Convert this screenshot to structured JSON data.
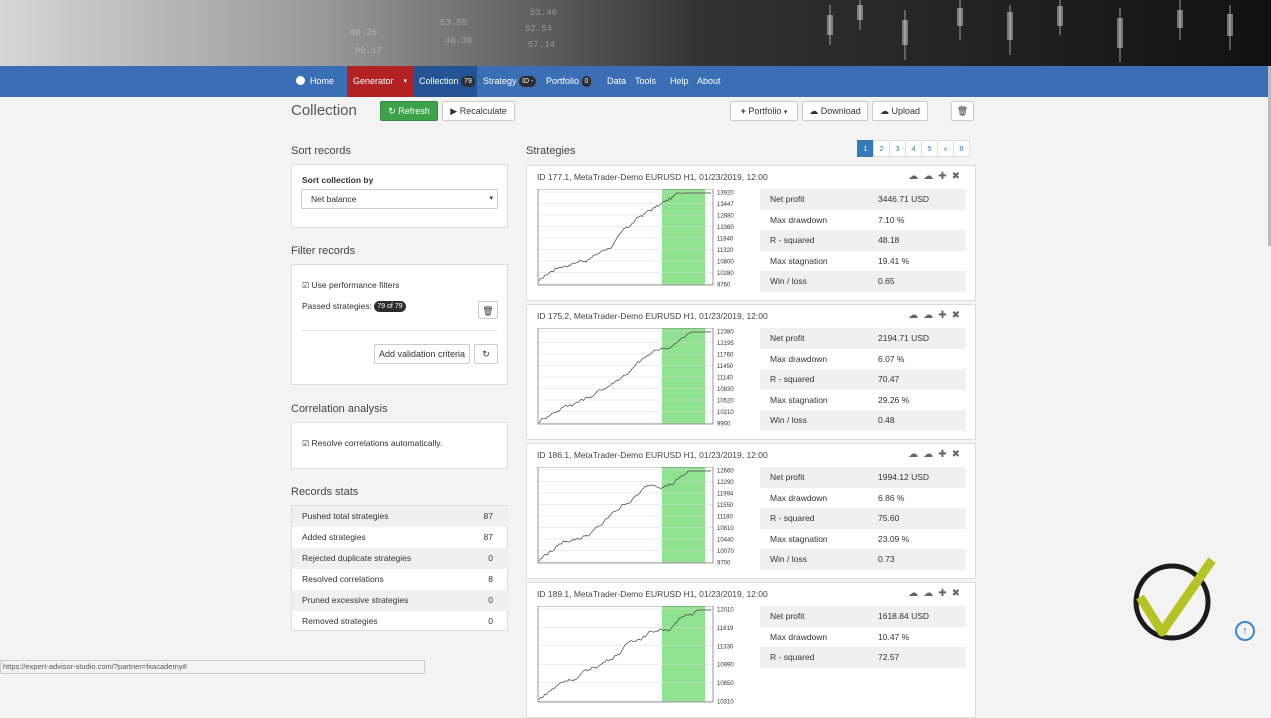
{
  "hero": {
    "ticker_numbers": [
      "53.40",
      "52.54",
      "57.14",
      "53.55",
      "40.30",
      "80.25",
      "90.17"
    ]
  },
  "nav": {
    "home": "Home",
    "generator": "Generator",
    "collection": "Collection",
    "collection_count": "79",
    "strategy": "Strategy",
    "strategy_badge": "ID -",
    "portfolio": "Portfolio",
    "portfolio_count": "0",
    "data": "Data",
    "tools": "Tools",
    "help": "Help",
    "about": "About"
  },
  "toolbar": {
    "title": "Collection",
    "refresh": "Refresh",
    "recalculate": "Recalculate",
    "portfolio": "Portfolio",
    "download": "Download",
    "upload": "Upload"
  },
  "sort": {
    "title": "Sort records",
    "label": "Sort collection by",
    "selected": "Net balance"
  },
  "filter": {
    "title": "Filter records",
    "use_filters": "Use performance filters",
    "passed_label": "Passed strategies:",
    "passed_badge": "79 of 79",
    "add_criteria": "Add validation criteria"
  },
  "correlation": {
    "title": "Correlation analysis",
    "resolve": "Resolve correlations automatically."
  },
  "stats": {
    "title": "Records stats",
    "rows": [
      {
        "label": "Pushed total strategies",
        "value": "87"
      },
      {
        "label": "Added strategies",
        "value": "87"
      },
      {
        "label": "Rejected duplicate strategies",
        "value": "0"
      },
      {
        "label": "Resolved correlations",
        "value": "8"
      },
      {
        "label": "Pruned excessive strategies",
        "value": "0"
      },
      {
        "label": "Removed strategies",
        "value": "0"
      }
    ]
  },
  "strategies": {
    "title": "Strategies",
    "pages": [
      "1",
      "2",
      "3",
      "4",
      "5",
      "»",
      "8"
    ],
    "active_page": "1",
    "metric_labels": [
      "Net profit",
      "Max drawdown",
      "R - squared",
      "Max stagnation",
      "Win / loss"
    ],
    "cards": [
      {
        "title": "ID 177.1, MetaTrader-Demo EURUSD H1, 01/23/2019, 12:00",
        "values": [
          "3446.71 USD",
          "7.10 %",
          "48.18",
          "19.41 %",
          "0.65"
        ],
        "axis": [
          "13920",
          "13447",
          "12880",
          "12360",
          "11840",
          "11320",
          "10800",
          "10280",
          "9760"
        ]
      },
      {
        "title": "ID 175.2, MetaTrader-Demo EURUSD H1, 01/23/2019, 12:00",
        "values": [
          "2194.71 USD",
          "6.07 %",
          "70.47",
          "29.26 %",
          "0.48"
        ],
        "axis": [
          "12380",
          "12195",
          "11760",
          "11450",
          "11140",
          "10830",
          "10520",
          "10210",
          "9900"
        ]
      },
      {
        "title": "ID 186.1, MetaTrader-Demo EURUSD H1, 01/23/2019, 12:00",
        "values": [
          "1994.12 USD",
          "6.86 %",
          "75.60",
          "23.09 %",
          "0.73"
        ],
        "axis": [
          "12660",
          "12290",
          "11994",
          "11550",
          "11180",
          "10810",
          "10440",
          "10070",
          "9700"
        ]
      },
      {
        "title": "ID 189.1, MetaTrader-Demo EURUSD H1, 01/23/2019, 12:00",
        "values": [
          "1618.84 USD",
          "10.47 %",
          "72.57",
          "",
          ""
        ],
        "axis": [
          "12010",
          "11619",
          "11330",
          "10990",
          "10650",
          "10310"
        ]
      }
    ]
  },
  "status_url": "https://expert-advisor-studio.com/?partner=fxacademy#",
  "colors": {
    "nav": "#3a6fb5",
    "generator": "#b22222",
    "collection": "#245394",
    "refresh": "#3ea24a",
    "oos": "#8fe28f",
    "logo_check": "#b5c424"
  }
}
